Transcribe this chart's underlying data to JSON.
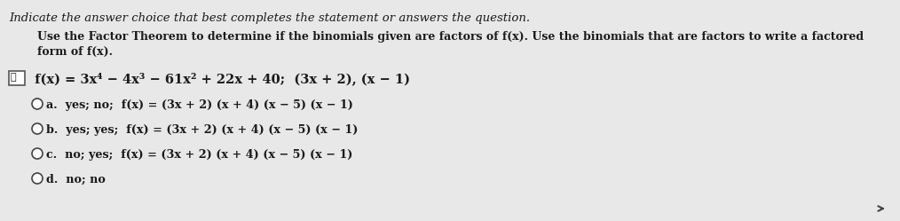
{
  "bg_color": "#e8e8e8",
  "title_line": "Indicate the answer choice that best completes the statement or answers the question.",
  "instruction_line1": "Use the Factor Theorem to determine if the binomials given are factors of f(x). Use the binomials that are factors to write a factored",
  "instruction_line2": "form of f(x).",
  "question": " f(x) = 3x⁴ − 4x³ − 61x² + 22x + 40;  (3x + 2), (x − 1)",
  "choice_a": "a.  yes; no;  f(x) = (3x + 2) (x + 4) (x − 5) (x − 1)",
  "choice_b": "b.  yes; yes;  f(x) = (3x + 2) (x + 4) (x − 5) (x − 1)",
  "choice_c": "c.  no; yes;  f(x) = (3x + 2) (x + 4) (x − 5) (x − 1)",
  "choice_d": "d.  no; no",
  "text_color": "#1a1a1a"
}
